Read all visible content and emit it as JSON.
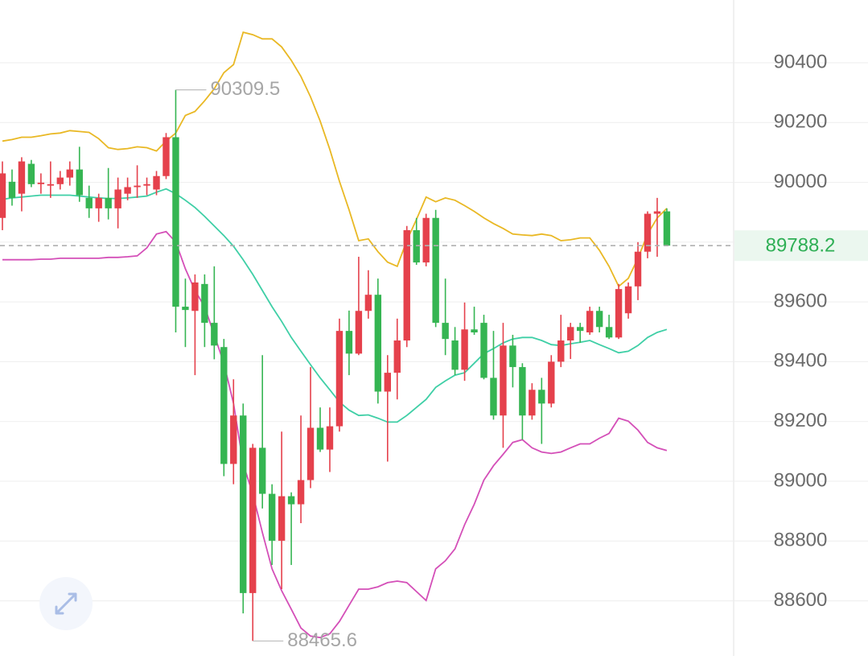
{
  "chart_data": {
    "type": "candlestick",
    "up_color": "#e5414c",
    "down_color": "#35b552",
    "open": [
      89881,
      90002,
      89962,
      90062,
      89994,
      89989,
      89994,
      90016,
      90043,
      89948,
      89913,
      89948,
      89913,
      89962,
      89984,
      89989,
      89976,
      90021,
      90151,
      89584,
      89570,
      89660,
      89530,
      89449,
      89058,
      89220,
      88626,
      89112,
      88958,
      88801,
      88950,
      88923,
      89004,
      89179,
      89106,
      89184,
      89503,
      89427,
      89570,
      89624,
      89300,
      89363,
      89471,
      89840,
      89732,
      89881,
      89530,
      89471,
      89373,
      89508,
      89530,
      89346,
      89220,
      89454,
      89382,
      89220,
      89306,
      89260,
      89400,
      89471,
      89516,
      89498,
      89570,
      89516,
      89481,
      89562,
      89652,
      89768,
      89895,
      89903
    ],
    "high": [
      90070,
      90043,
      90084,
      90075,
      90030,
      90070,
      90038,
      90070,
      90119,
      89989,
      89962,
      90048,
      90016,
      90016,
      90057,
      90016,
      90038,
      90165,
      90309.5,
      89678,
      89692,
      89692,
      89719,
      89476,
      89341,
      89260,
      89125,
      89422,
      88990,
      89166,
      88963,
      89220,
      89382,
      89247,
      89247,
      89544,
      89571,
      89751,
      89706,
      89678,
      89422,
      89544,
      89854,
      89881,
      89895,
      89908,
      89678,
      89516,
      89598,
      89584,
      89557,
      89503,
      89530,
      89490,
      89395,
      89328,
      89346,
      89422,
      89557,
      89530,
      89530,
      89584,
      89584,
      89557,
      89660,
      89665,
      89800,
      89903,
      89948,
      89913
    ],
    "low": [
      89840,
      89922,
      89903,
      89984,
      89962,
      89948,
      89976,
      89989,
      89935,
      89881,
      89868,
      89876,
      89846,
      89940,
      89948,
      89957,
      89957,
      90011,
      89498,
      89449,
      89355,
      89449,
      89408,
      89017,
      88990,
      88558,
      88465.6,
      88909,
      88720,
      88639,
      88720,
      88860,
      88977,
      89098,
      89031,
      89166,
      89355,
      89422,
      89544,
      89260,
      89066,
      89274,
      89449,
      89724,
      89719,
      89516,
      89422,
      89355,
      89336,
      89490,
      89341,
      89206,
      89112,
      89314,
      89139,
      89206,
      89125,
      89247,
      89382,
      89409,
      89463,
      89490,
      89498,
      89476,
      89476,
      89544,
      89606,
      89746,
      89751,
      89787
    ],
    "close": [
      90030,
      89948,
      90070,
      89994,
      89999,
      89994,
      90016,
      90043,
      89957,
      89913,
      89948,
      89913,
      89976,
      89984,
      89989,
      89994,
      90021,
      90151,
      89584,
      89573,
      89665,
      89530,
      89454,
      89058,
      89220,
      88626,
      89112,
      88958,
      88801,
      88950,
      88923,
      89004,
      89179,
      89106,
      89184,
      89503,
      89427,
      89570,
      89624,
      89300,
      89363,
      89471,
      89840,
      89732,
      89881,
      89530,
      89476,
      89373,
      89508,
      89498,
      89346,
      89220,
      89454,
      89382,
      89220,
      89306,
      89260,
      89400,
      89471,
      89516,
      89503,
      89570,
      89516,
      89481,
      89643,
      89652,
      89768,
      89895,
      89903,
      89788.2
    ],
    "bollinger": [
      {
        "color": "#e9b824",
        "values": [
          90138,
          90143,
          90151,
          90151,
          90156,
          90162,
          90165,
          90173,
          90170,
          90167,
          90146,
          90116,
          90110,
          90113,
          90119,
          90116,
          90105,
          90138,
          90165,
          90224,
          90237,
          90273,
          90313,
          90367,
          90394,
          90502,
          90494,
          90480,
          90480,
          90453,
          90408,
          90354,
          90286,
          90205,
          90110,
          90003,
          89908,
          89805,
          89811,
          89768,
          89733,
          89719,
          89805,
          89876,
          89951,
          89935,
          89948,
          89940,
          89922,
          89903,
          89881,
          89862,
          89846,
          89827,
          89824,
          89822,
          89827,
          89822,
          89805,
          89808,
          89814,
          89814,
          89773,
          89719,
          89652,
          89679,
          89746,
          89827,
          89881,
          89913
        ]
      },
      {
        "color": "#3fcfa6",
        "values": [
          89943,
          89948,
          89951,
          89954,
          89957,
          89957,
          89957,
          89957,
          89954,
          89951,
          89948,
          89946,
          89946,
          89948,
          89951,
          89954,
          89967,
          89978,
          89962,
          89940,
          89916,
          89886,
          89854,
          89822,
          89786,
          89741,
          89692,
          89638,
          89584,
          89535,
          89481,
          89435,
          89390,
          89346,
          89306,
          89265,
          89238,
          89220,
          89222,
          89211,
          89198,
          89198,
          89220,
          89247,
          89274,
          89314,
          89336,
          89355,
          89363,
          89395,
          89427,
          89444,
          89463,
          89476,
          89481,
          89481,
          89471,
          89457,
          89454,
          89460,
          89465,
          89471,
          89457,
          89444,
          89430,
          89435,
          89454,
          89481,
          89498,
          89508
        ]
      },
      {
        "color": "#d44fb8",
        "values": [
          89741,
          89741,
          89741,
          89741,
          89743,
          89743,
          89746,
          89746,
          89746,
          89746,
          89746,
          89749,
          89749,
          89751,
          89754,
          89781,
          89827,
          89835,
          89800,
          89711,
          89638,
          89584,
          89490,
          89395,
          89260,
          89058,
          88958,
          88828,
          88707,
          88634,
          88572,
          88509,
          88482,
          88477,
          88490,
          88531,
          88585,
          88639,
          88639,
          88647,
          88661,
          88666,
          88661,
          88631,
          88601,
          88707,
          88734,
          88774,
          88855,
          88923,
          89004,
          89052,
          89090,
          89130,
          89139,
          89112,
          89098,
          89093,
          89098,
          89112,
          89125,
          89125,
          89144,
          89160,
          89211,
          89201,
          89171,
          89130,
          89112,
          89103
        ]
      }
    ],
    "ylim": [
      88400,
      90610
    ],
    "yticks": [
      88600,
      88800,
      89000,
      89200,
      89400,
      89600,
      89800,
      90000,
      90200,
      90400
    ],
    "grid": true,
    "last_price_color": "#2eaf55"
  }
}
